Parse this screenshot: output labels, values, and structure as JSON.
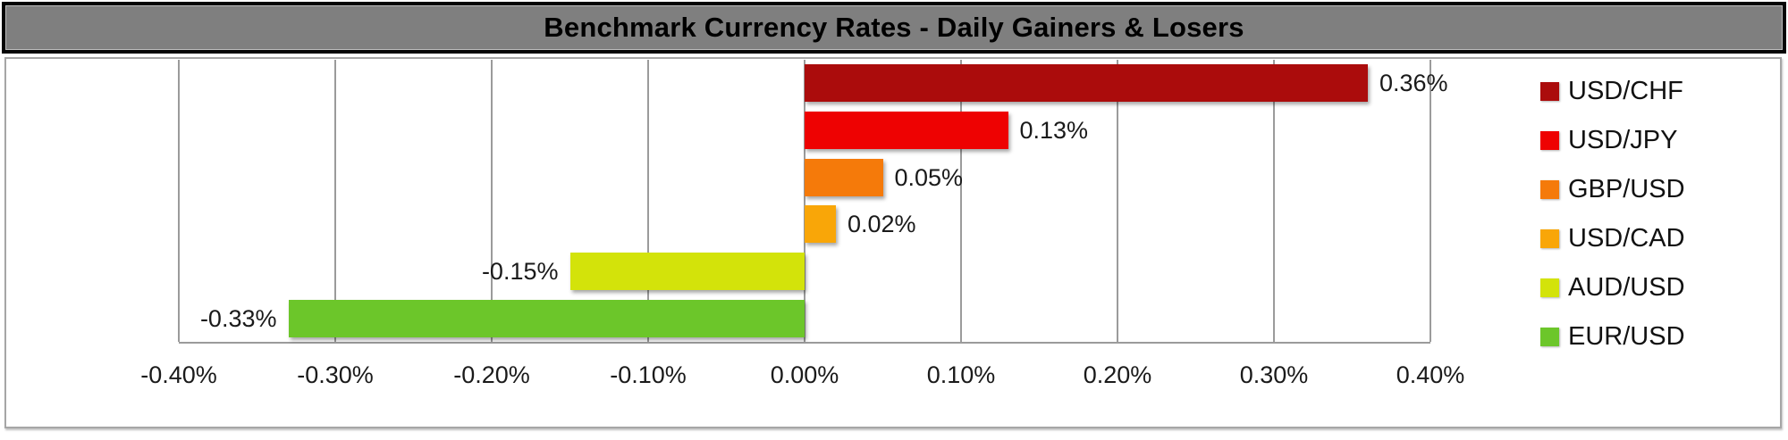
{
  "title_bar": {
    "text": "Benchmark Currency Rates - Daily Gainers & Losers",
    "background_color": "#7f7f7f",
    "border_color": "#050505",
    "text_color": "#000000"
  },
  "chart_data": {
    "type": "bar",
    "orientation": "horizontal",
    "title": "Benchmark Currency Rates - Daily Gainers & Losers",
    "categories": [
      "USD/CHF",
      "USD/JPY",
      "GBP/USD",
      "USD/CAD",
      "AUD/USD",
      "EUR/USD"
    ],
    "values": [
      0.36,
      0.13,
      0.05,
      0.02,
      -0.15,
      -0.33
    ],
    "data_labels": [
      "0.36%",
      "0.13%",
      "0.05%",
      "0.02%",
      "-0.15%",
      "-0.33%"
    ],
    "colors": [
      "#ab0c0c",
      "#ee0202",
      "#f57a0a",
      "#f9a608",
      "#d3e30a",
      "#6cc62a"
    ],
    "xlim": [
      -0.4,
      0.4
    ],
    "x_ticks": [
      -0.4,
      -0.3,
      -0.2,
      -0.1,
      0.0,
      0.1,
      0.2,
      0.3,
      0.4
    ],
    "x_tick_labels": [
      "-0.40%",
      "-0.30%",
      "-0.20%",
      "-0.10%",
      "0.00%",
      "0.10%",
      "0.20%",
      "0.30%",
      "0.40%"
    ],
    "grid": true,
    "zero_line": true,
    "legend_position": "right",
    "legend": [
      "USD/CHF",
      "USD/JPY",
      "GBP/USD",
      "USD/CAD",
      "AUD/USD",
      "EUR/USD"
    ]
  },
  "styles": {
    "gridline_color": "#9b9b9b",
    "plot_background": "#ffffff",
    "label_color": "#1a1a1a"
  }
}
